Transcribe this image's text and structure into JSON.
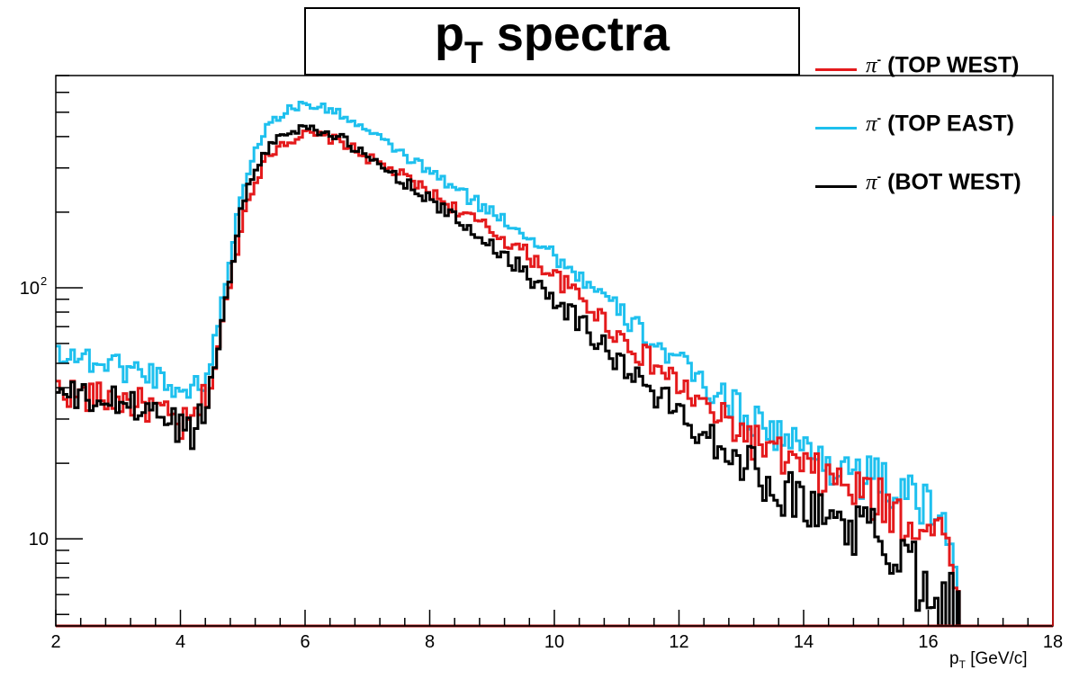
{
  "title": {
    "main": "p",
    "sub": "T",
    "rest": " spectra"
  },
  "xlabel": {
    "p": "p",
    "sub": "T",
    "rest": " [GeV/c]"
  },
  "legend": [
    {
      "name": "(TOP WEST)",
      "color": "#e41a1c"
    },
    {
      "name": "(TOP EAST)",
      "color": "#1ec0ee"
    },
    {
      "name": "(BOT WEST)",
      "color": "#000000"
    }
  ],
  "legend_symbol": "π",
  "legend_sup": "-",
  "chart_data": {
    "type": "line",
    "title": "pT spectra",
    "xlabel": "pT [GeV/c]",
    "ylabel": "",
    "xlim": [
      2,
      18
    ],
    "ylim": [
      4.5,
      700
    ],
    "yscale": "log",
    "x_ticks": [
      "2",
      "4",
      "6",
      "8",
      "10",
      "12",
      "14",
      "16",
      "18"
    ],
    "y_ticks": [
      {
        "value": 10,
        "label": "10"
      },
      {
        "value": 100,
        "label": "10",
        "sup": "2"
      }
    ],
    "legend_position": "top-right",
    "grid": false,
    "series": [
      {
        "name": "π- (TOP WEST)",
        "color": "#e41a1c",
        "x": [
          2.0,
          2.5,
          3.0,
          3.5,
          4.0,
          4.2,
          4.5,
          4.8,
          5.0,
          5.2,
          5.4,
          5.6,
          5.8,
          6.0,
          6.3,
          6.6,
          7.0,
          7.5,
          8.0,
          8.5,
          9.0,
          9.5,
          10.0,
          10.5,
          11.0,
          11.5,
          12.0,
          12.5,
          13.0,
          13.5,
          14.0,
          14.5,
          15.0,
          15.5,
          16.0,
          16.4,
          16.5
        ],
        "y": [
          40,
          37,
          36,
          34,
          28,
          29,
          42,
          105,
          190,
          270,
          330,
          375,
          390,
          410,
          400,
          380,
          330,
          285,
          240,
          200,
          168,
          140,
          112,
          88,
          66,
          52,
          41,
          32,
          27,
          22,
          19,
          17,
          15,
          13,
          11,
          10,
          4.5
        ]
      },
      {
        "name": "π- (TOP EAST)",
        "color": "#1ec0ee",
        "x": [
          2.0,
          2.5,
          3.0,
          3.5,
          4.0,
          4.2,
          4.5,
          4.8,
          5.0,
          5.2,
          5.4,
          5.6,
          5.8,
          6.0,
          6.3,
          6.6,
          7.0,
          7.5,
          8.0,
          8.5,
          9.0,
          9.5,
          10.0,
          10.5,
          11.0,
          11.5,
          12.0,
          12.5,
          13.0,
          13.5,
          14.0,
          14.5,
          15.0,
          15.5,
          16.0,
          16.4,
          16.5
        ],
        "y": [
          57,
          52,
          49,
          46,
          40,
          38,
          50,
          135,
          250,
          360,
          440,
          490,
          520,
          540,
          520,
          490,
          420,
          350,
          290,
          240,
          200,
          168,
          135,
          106,
          82,
          64,
          50,
          40,
          33,
          27,
          23,
          20,
          18,
          16,
          13,
          11,
          4.5
        ]
      },
      {
        "name": "π- (BOT WEST)",
        "color": "#000000",
        "x": [
          2.0,
          2.5,
          3.0,
          3.5,
          4.0,
          4.2,
          4.5,
          4.8,
          5.0,
          5.2,
          5.4,
          5.6,
          5.8,
          6.0,
          6.3,
          6.6,
          7.0,
          7.5,
          8.0,
          8.5,
          9.0,
          9.5,
          10.0,
          10.5,
          11.0,
          11.5,
          12.0,
          12.5,
          13.0,
          13.5,
          14.0,
          14.5,
          15.0,
          15.5,
          16.0,
          16.4,
          16.5
        ],
        "y": [
          38,
          36,
          35,
          33,
          28,
          27,
          40,
          118,
          215,
          300,
          360,
          400,
          420,
          440,
          420,
          390,
          330,
          275,
          225,
          180,
          148,
          118,
          92,
          70,
          52,
          40,
          32,
          26,
          21,
          17,
          14,
          12,
          11,
          9,
          7,
          6,
          4.5
        ]
      }
    ]
  }
}
